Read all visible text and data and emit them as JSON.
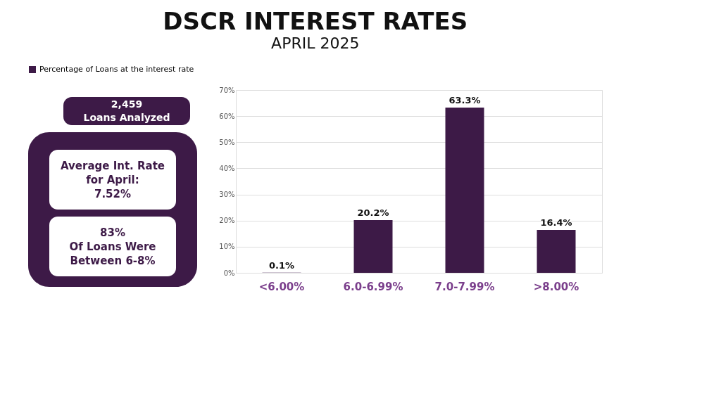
{
  "chart_data": {
    "type": "bar",
    "title": "DSCR INTEREST RATES",
    "subtitle": "APRIL 2025",
    "categories": [
      "<6.00%",
      "6.0-6.99%",
      "7.0-7.99%",
      ">8.00%"
    ],
    "series": [
      {
        "name": "Percentage of Loans at the interest rate",
        "color": "#3d1a47",
        "values": [
          0.1,
          20.2,
          63.3,
          16.4
        ],
        "value_labels": [
          "0.1%",
          "20.2%",
          "63.3%",
          "16.4%"
        ]
      }
    ],
    "ylim": [
      0,
      70
    ],
    "yticks": [
      {
        "value": 0,
        "label": "0%"
      },
      {
        "value": 10,
        "label": "10%"
      },
      {
        "value": 20,
        "label": "20%"
      },
      {
        "value": 30,
        "label": "30%"
      },
      {
        "value": 40,
        "label": "40%"
      },
      {
        "value": 50,
        "label": "50%"
      },
      {
        "value": 60,
        "label": "60%"
      },
      {
        "value": 70,
        "label": "70%"
      }
    ],
    "grid": "y",
    "legend": "top",
    "annotations": [
      "2,459\nLoans Analyzed",
      "Average Int. Rate\nfor April:\n7.52%",
      "83%\nOf Loans Were\nBetween 6-8%"
    ]
  }
}
